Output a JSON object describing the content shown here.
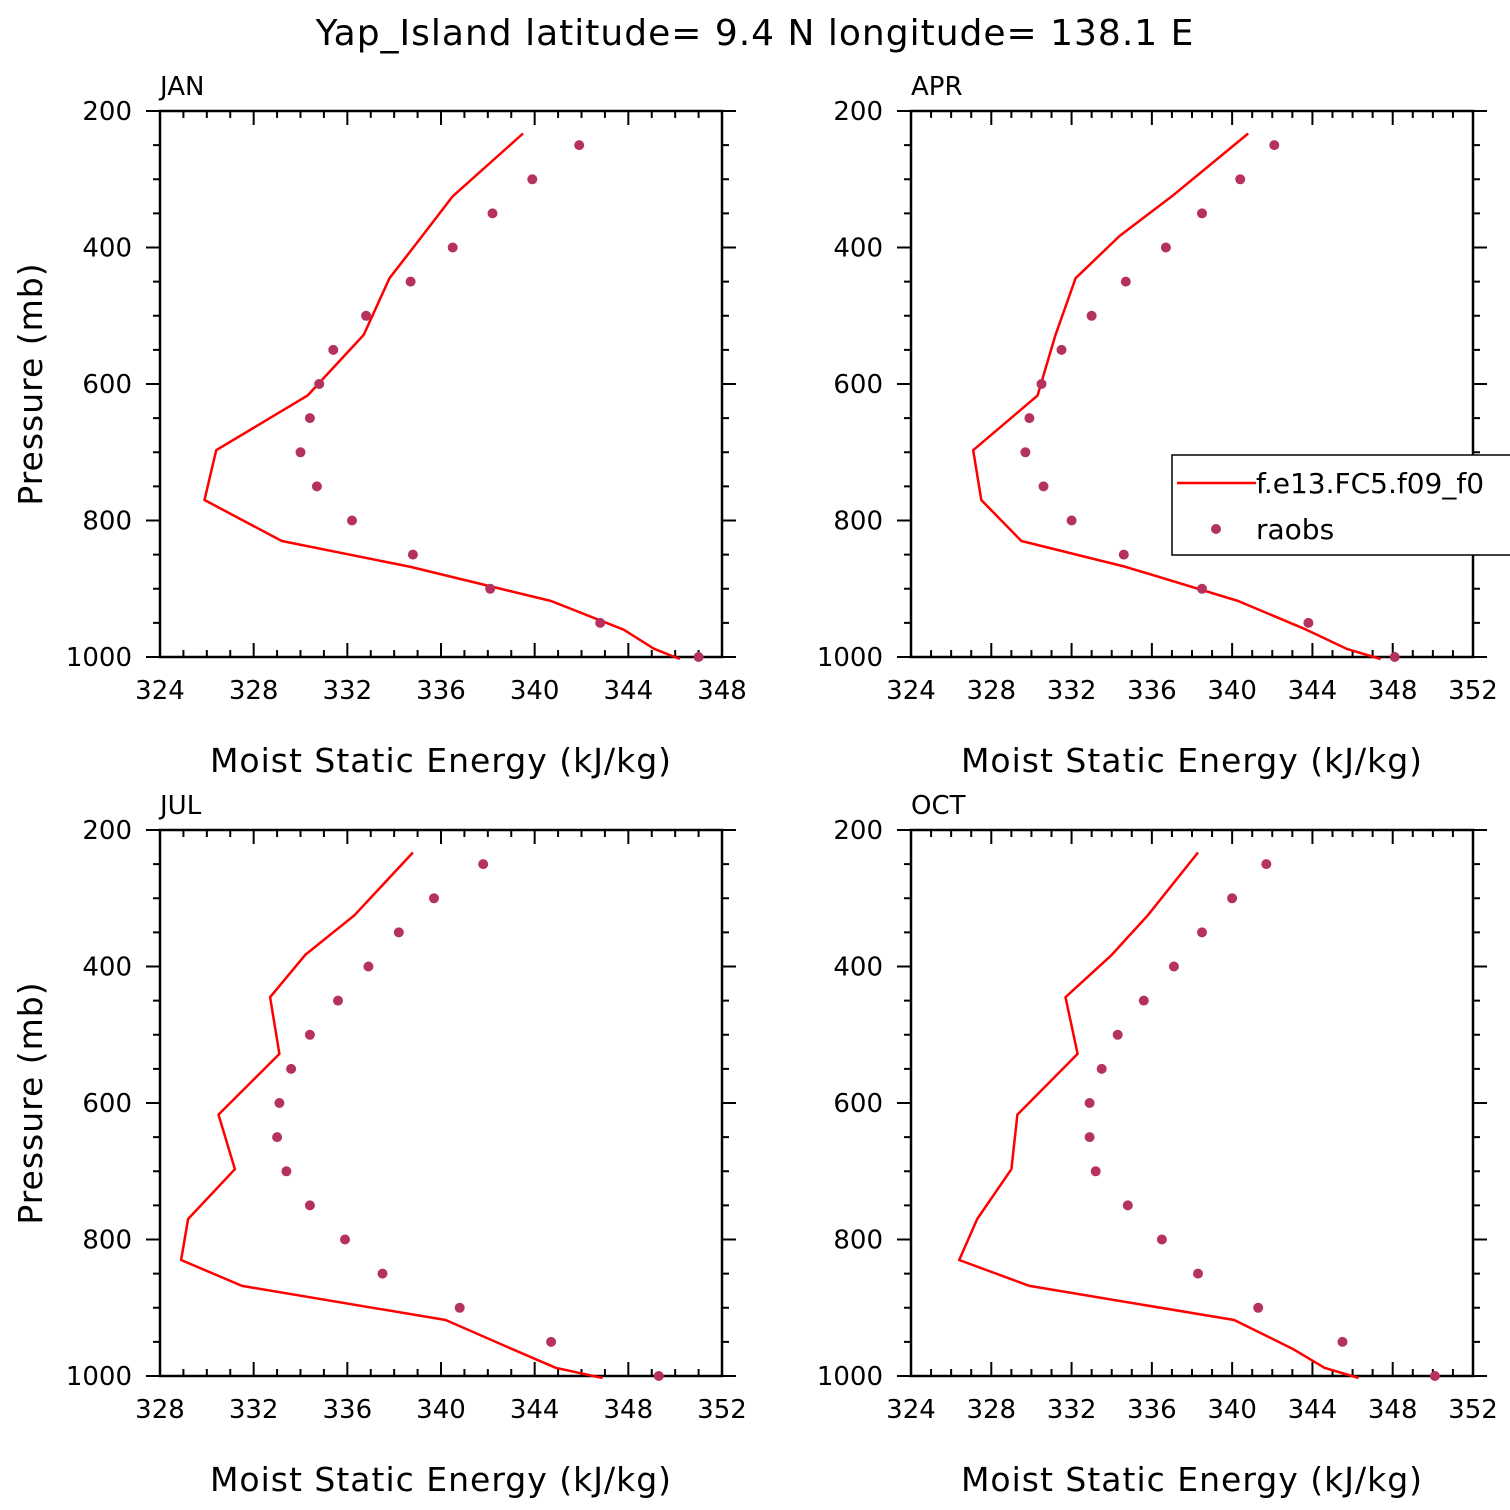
{
  "title": "Yap_Island  latitude= 9.4 N longitude= 138.1 E",
  "colors": {
    "model": "#ff0000",
    "obs": "#b5315e",
    "axis": "#000000"
  },
  "legend": {
    "model": "f.e13.FC5.f09_f0",
    "obs": "raobs",
    "placement": "right-center (APR panel)"
  },
  "chart_data": [
    {
      "type": "line",
      "panel": "JAN",
      "xlabel": "Moist Static Energy (kJ/kg)",
      "ylabel": "Pressure (mb)",
      "xlim": [
        324,
        348
      ],
      "xticks": [
        324,
        328,
        332,
        336,
        340,
        344,
        348
      ],
      "ylim": [
        1000,
        200
      ],
      "yticks": [
        200,
        400,
        600,
        800,
        1000
      ],
      "series": [
        {
          "name": "f.e13.FC5.f09_f0",
          "type": "line",
          "p": [
            233,
            325,
            383,
            445,
            528,
            617,
            697,
            770,
            830,
            868,
            918,
            960,
            988,
            1003
          ],
          "mse": [
            339.5,
            336.5,
            335.2,
            333.8,
            332.7,
            330.3,
            326.4,
            325.9,
            329.2,
            334.7,
            340.7,
            343.8,
            345.1,
            346.2
          ]
        },
        {
          "name": "raobs",
          "type": "scatter",
          "p": [
            250,
            300,
            350,
            400,
            450,
            500,
            550,
            600,
            650,
            700,
            750,
            800,
            850,
            900,
            950,
            1000
          ],
          "mse": [
            341.9,
            339.9,
            338.2,
            336.5,
            334.7,
            332.8,
            331.4,
            330.8,
            330.4,
            330.0,
            330.7,
            332.2,
            334.8,
            338.1,
            342.8,
            347.0
          ]
        }
      ]
    },
    {
      "type": "line",
      "panel": "APR",
      "xlabel": "Moist Static Energy (kJ/kg)",
      "ylabel": "",
      "xlim": [
        324,
        352
      ],
      "xticks": [
        324,
        328,
        332,
        336,
        340,
        344,
        348,
        352
      ],
      "ylim": [
        1000,
        200
      ],
      "yticks": [
        200,
        400,
        600,
        800,
        1000
      ],
      "series": [
        {
          "name": "f.e13.FC5.f09_f0",
          "type": "line",
          "p": [
            233,
            325,
            383,
            445,
            528,
            617,
            697,
            770,
            830,
            868,
            918,
            960,
            988,
            1003
          ],
          "mse": [
            340.8,
            337.0,
            334.4,
            332.2,
            331.2,
            330.3,
            327.1,
            327.5,
            329.5,
            334.7,
            340.3,
            343.7,
            345.7,
            347.4
          ]
        },
        {
          "name": "raobs",
          "type": "scatter",
          "p": [
            250,
            300,
            350,
            400,
            450,
            500,
            550,
            600,
            650,
            700,
            750,
            800,
            850,
            900,
            950,
            1000
          ],
          "mse": [
            342.1,
            340.4,
            338.5,
            336.7,
            334.7,
            333.0,
            331.5,
            330.5,
            329.9,
            329.7,
            330.6,
            332.0,
            334.6,
            338.5,
            343.8,
            348.1
          ]
        }
      ]
    },
    {
      "type": "line",
      "panel": "JUL",
      "xlabel": "Moist Static Energy (kJ/kg)",
      "ylabel": "Pressure (mb)",
      "xlim": [
        328,
        352
      ],
      "xticks": [
        328,
        332,
        336,
        340,
        344,
        348,
        352
      ],
      "ylim": [
        1000,
        200
      ],
      "yticks": [
        200,
        400,
        600,
        800,
        1000
      ],
      "series": [
        {
          "name": "f.e13.FC5.f09_f0",
          "type": "line",
          "p": [
            233,
            325,
            383,
            445,
            528,
            617,
            697,
            770,
            830,
            868,
            918,
            960,
            988,
            1003
          ],
          "mse": [
            338.8,
            336.3,
            334.2,
            332.7,
            333.1,
            330.5,
            331.2,
            329.2,
            328.9,
            331.5,
            340.2,
            343.0,
            344.9,
            346.9
          ]
        },
        {
          "name": "raobs",
          "type": "scatter",
          "p": [
            250,
            300,
            350,
            400,
            450,
            500,
            550,
            600,
            650,
            700,
            750,
            800,
            850,
            900,
            950,
            1000
          ],
          "mse": [
            341.8,
            339.7,
            338.2,
            336.9,
            335.6,
            334.4,
            333.6,
            333.1,
            333.0,
            333.4,
            334.4,
            335.9,
            337.5,
            340.8,
            344.7,
            349.3
          ]
        }
      ]
    },
    {
      "type": "line",
      "panel": "OCT",
      "xlabel": "Moist Static Energy (kJ/kg)",
      "ylabel": "",
      "xlim": [
        324,
        352
      ],
      "xticks": [
        324,
        328,
        332,
        336,
        340,
        344,
        348,
        352
      ],
      "ylim": [
        1000,
        200
      ],
      "yticks": [
        200,
        400,
        600,
        800,
        1000
      ],
      "series": [
        {
          "name": "f.e13.FC5.f09_f0",
          "type": "line",
          "p": [
            233,
            325,
            383,
            445,
            528,
            617,
            697,
            770,
            830,
            868,
            918,
            960,
            988,
            1003
          ],
          "mse": [
            338.3,
            335.8,
            334.0,
            331.7,
            332.3,
            329.3,
            329.0,
            327.3,
            326.4,
            329.9,
            340.1,
            343.0,
            344.6,
            346.3
          ]
        },
        {
          "name": "raobs",
          "type": "scatter",
          "p": [
            250,
            300,
            350,
            400,
            450,
            500,
            550,
            600,
            650,
            700,
            750,
            800,
            850,
            900,
            950,
            1000
          ],
          "mse": [
            341.7,
            340.0,
            338.5,
            337.1,
            335.6,
            334.3,
            333.5,
            332.9,
            332.9,
            333.2,
            334.8,
            336.5,
            338.3,
            341.3,
            345.5,
            350.1
          ]
        }
      ]
    }
  ]
}
